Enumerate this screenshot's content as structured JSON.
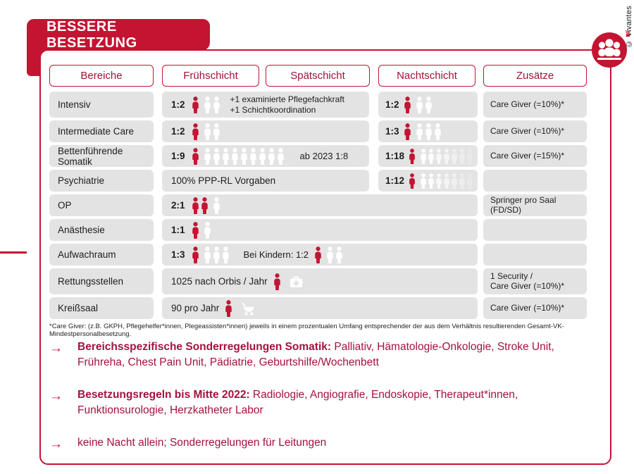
{
  "title": "BESSERE BESETZUNG",
  "credit": "© Vivantes",
  "logo": {
    "registered": "®",
    "name": "vivantes-group-logo"
  },
  "arrow_glyph": "→",
  "columns": [
    "Bereiche",
    "Frühschicht",
    "Spätschicht",
    "Nachtschicht",
    "Zusätze"
  ],
  "rows": [
    {
      "label": "Intensiv",
      "span": 2,
      "main": {
        "ratio": "1:2",
        "red": 1,
        "white": 2,
        "note_lines": [
          "+1 examinierte Pflegefachkraft",
          "+1 Schichtkoordination"
        ]
      },
      "nacht": {
        "ratio": "1:2",
        "red": 1,
        "white": 2
      },
      "zusatz": "Care Giver (=10%)*",
      "tall": true
    },
    {
      "label": "Intermediate Care",
      "span": 2,
      "main": {
        "ratio": "1:2",
        "red": 1,
        "white": 2
      },
      "nacht": {
        "ratio": "1:3",
        "red": 1,
        "white": 3
      },
      "zusatz": "Care Giver (=10%)*"
    },
    {
      "label": "Bettenführende Somatik",
      "span": 2,
      "main": {
        "ratio": "1:9",
        "red": 1,
        "white": 9,
        "note": "ab 2023 1:8"
      },
      "nacht": {
        "ratio": "1:18",
        "red": 1,
        "white": 8,
        "fade": true
      },
      "zusatz": "Care Giver (=15%)*"
    },
    {
      "label": "Psychiatrie",
      "span": 2,
      "main": {
        "text": "100% PPP-RL Vorgaben"
      },
      "nacht": {
        "ratio": "1:12",
        "red": 1,
        "white": 8,
        "fade": true
      },
      "zusatz": ""
    },
    {
      "label": "OP",
      "span": 3,
      "main": {
        "ratio": "2:1",
        "red": 2,
        "white": 1
      },
      "zusatz": "Springer pro Saal (FD/SD)"
    },
    {
      "label": "Anästhesie",
      "span": 3,
      "main": {
        "ratio": "1:1",
        "red": 1,
        "white": 1
      },
      "zusatz": ""
    },
    {
      "label": "Aufwachraum",
      "span": 3,
      "main": {
        "ratio": "1:3",
        "red": 1,
        "white": 3,
        "extra": {
          "text": "Bei Kindern: 1:2",
          "red": 1,
          "white": 2
        }
      },
      "zusatz": ""
    },
    {
      "label": "Rettungsstellen",
      "span": 3,
      "main": {
        "text": "1025 nach Orbis / Jahr",
        "red": 1,
        "icon": "first-aid-case"
      },
      "zusatz": "1 Security /\nCare Giver (=10%)*",
      "tall": true
    },
    {
      "label": "Kreißsaal",
      "span": 3,
      "main": {
        "text": "90 pro Jahr",
        "red": 1,
        "icon": "stroller"
      },
      "zusatz": "Care Giver (=10%)*"
    }
  ],
  "footnote": "*Care Giver: (z.B. GKPH, Pflegehelfer*innen, Plegeassisten*innen) jeweils in einem prozentualen Umfang entsprechender der aus dem Verhältnis resultierenden Gesamt-VK-Mindestpersonalbesetzung.",
  "bullets": [
    {
      "bold": "Bereichsspezifische Sonderregelungen Somatik:",
      "rest": " Palliativ, Hämatologie-Onkologie, Stroke Unit, Frühreha, Chest Pain Unit, Pädiatrie, Geburtshilfe/Wochenbett"
    },
    {
      "bold": "Besetzungsregeln bis Mitte 2022:",
      "rest": " Radiologie, Angiografie, Endoskopie, Therapeut*innen, Funktionsurologie, Herzkatheter Labor"
    },
    {
      "bold": "",
      "rest": "keine Nacht allein; Sonderregelungen für Leitungen"
    }
  ],
  "colors": {
    "brand": "#c31432",
    "text_red": "#9f1235",
    "box_gray": "#e4e3e3"
  }
}
